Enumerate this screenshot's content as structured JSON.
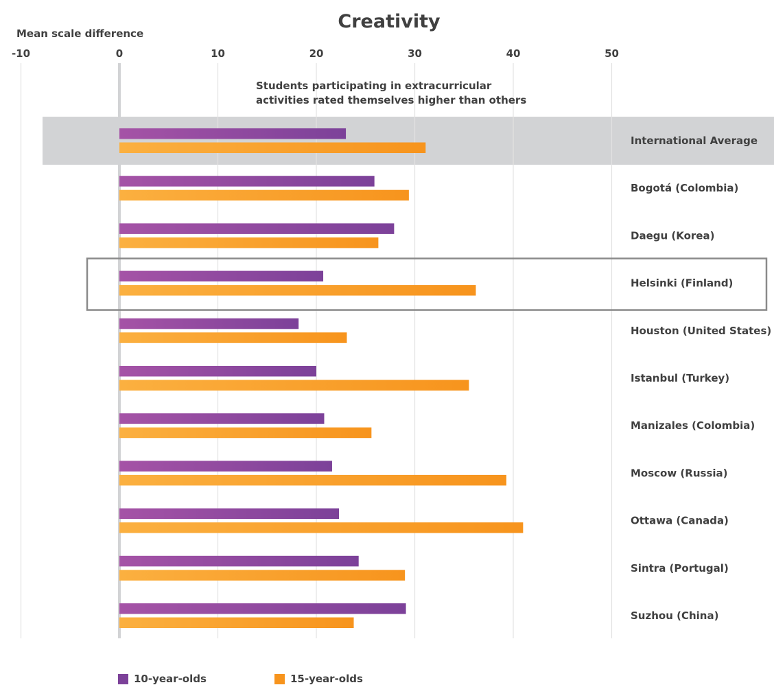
{
  "chart_data": {
    "type": "bar",
    "orientation": "horizontal",
    "title": "Creativity",
    "xlabel": "Mean scale difference",
    "ylabel": "",
    "xlim": [
      -10,
      50
    ],
    "xticks": [
      -10,
      0,
      10,
      20,
      30,
      40,
      50
    ],
    "grid": true,
    "legend_position": "bottom",
    "annotation": {
      "line1": "Students participating in extracurricular",
      "line2": "activities rated themselves higher than others"
    },
    "categories": [
      "International Average",
      "Bogotá (Colombia)",
      "Daegu (Korea)",
      "Helsinki (Finland)",
      "Houston (United States)",
      "Istanbul (Turkey)",
      "Manizales (Colombia)",
      "Moscow (Russia)",
      "Ottawa (Canada)",
      "Sintra (Portugal)",
      "Suzhou (China)"
    ],
    "shaded_category": "International Average",
    "highlighted_category": "Helsinki (Finland)",
    "series": [
      {
        "name": "10-year-olds",
        "color": "#7c4199",
        "color_light": "#a553a6",
        "values": [
          23.0,
          25.9,
          27.9,
          20.7,
          18.2,
          20.0,
          20.8,
          21.6,
          22.3,
          24.3,
          29.1
        ]
      },
      {
        "name": "15-year-olds",
        "color": "#f7941d",
        "color_light": "#fbb040",
        "values": [
          31.1,
          29.4,
          26.3,
          36.2,
          23.1,
          35.5,
          25.6,
          39.3,
          41.0,
          29.0,
          23.8
        ]
      }
    ]
  }
}
